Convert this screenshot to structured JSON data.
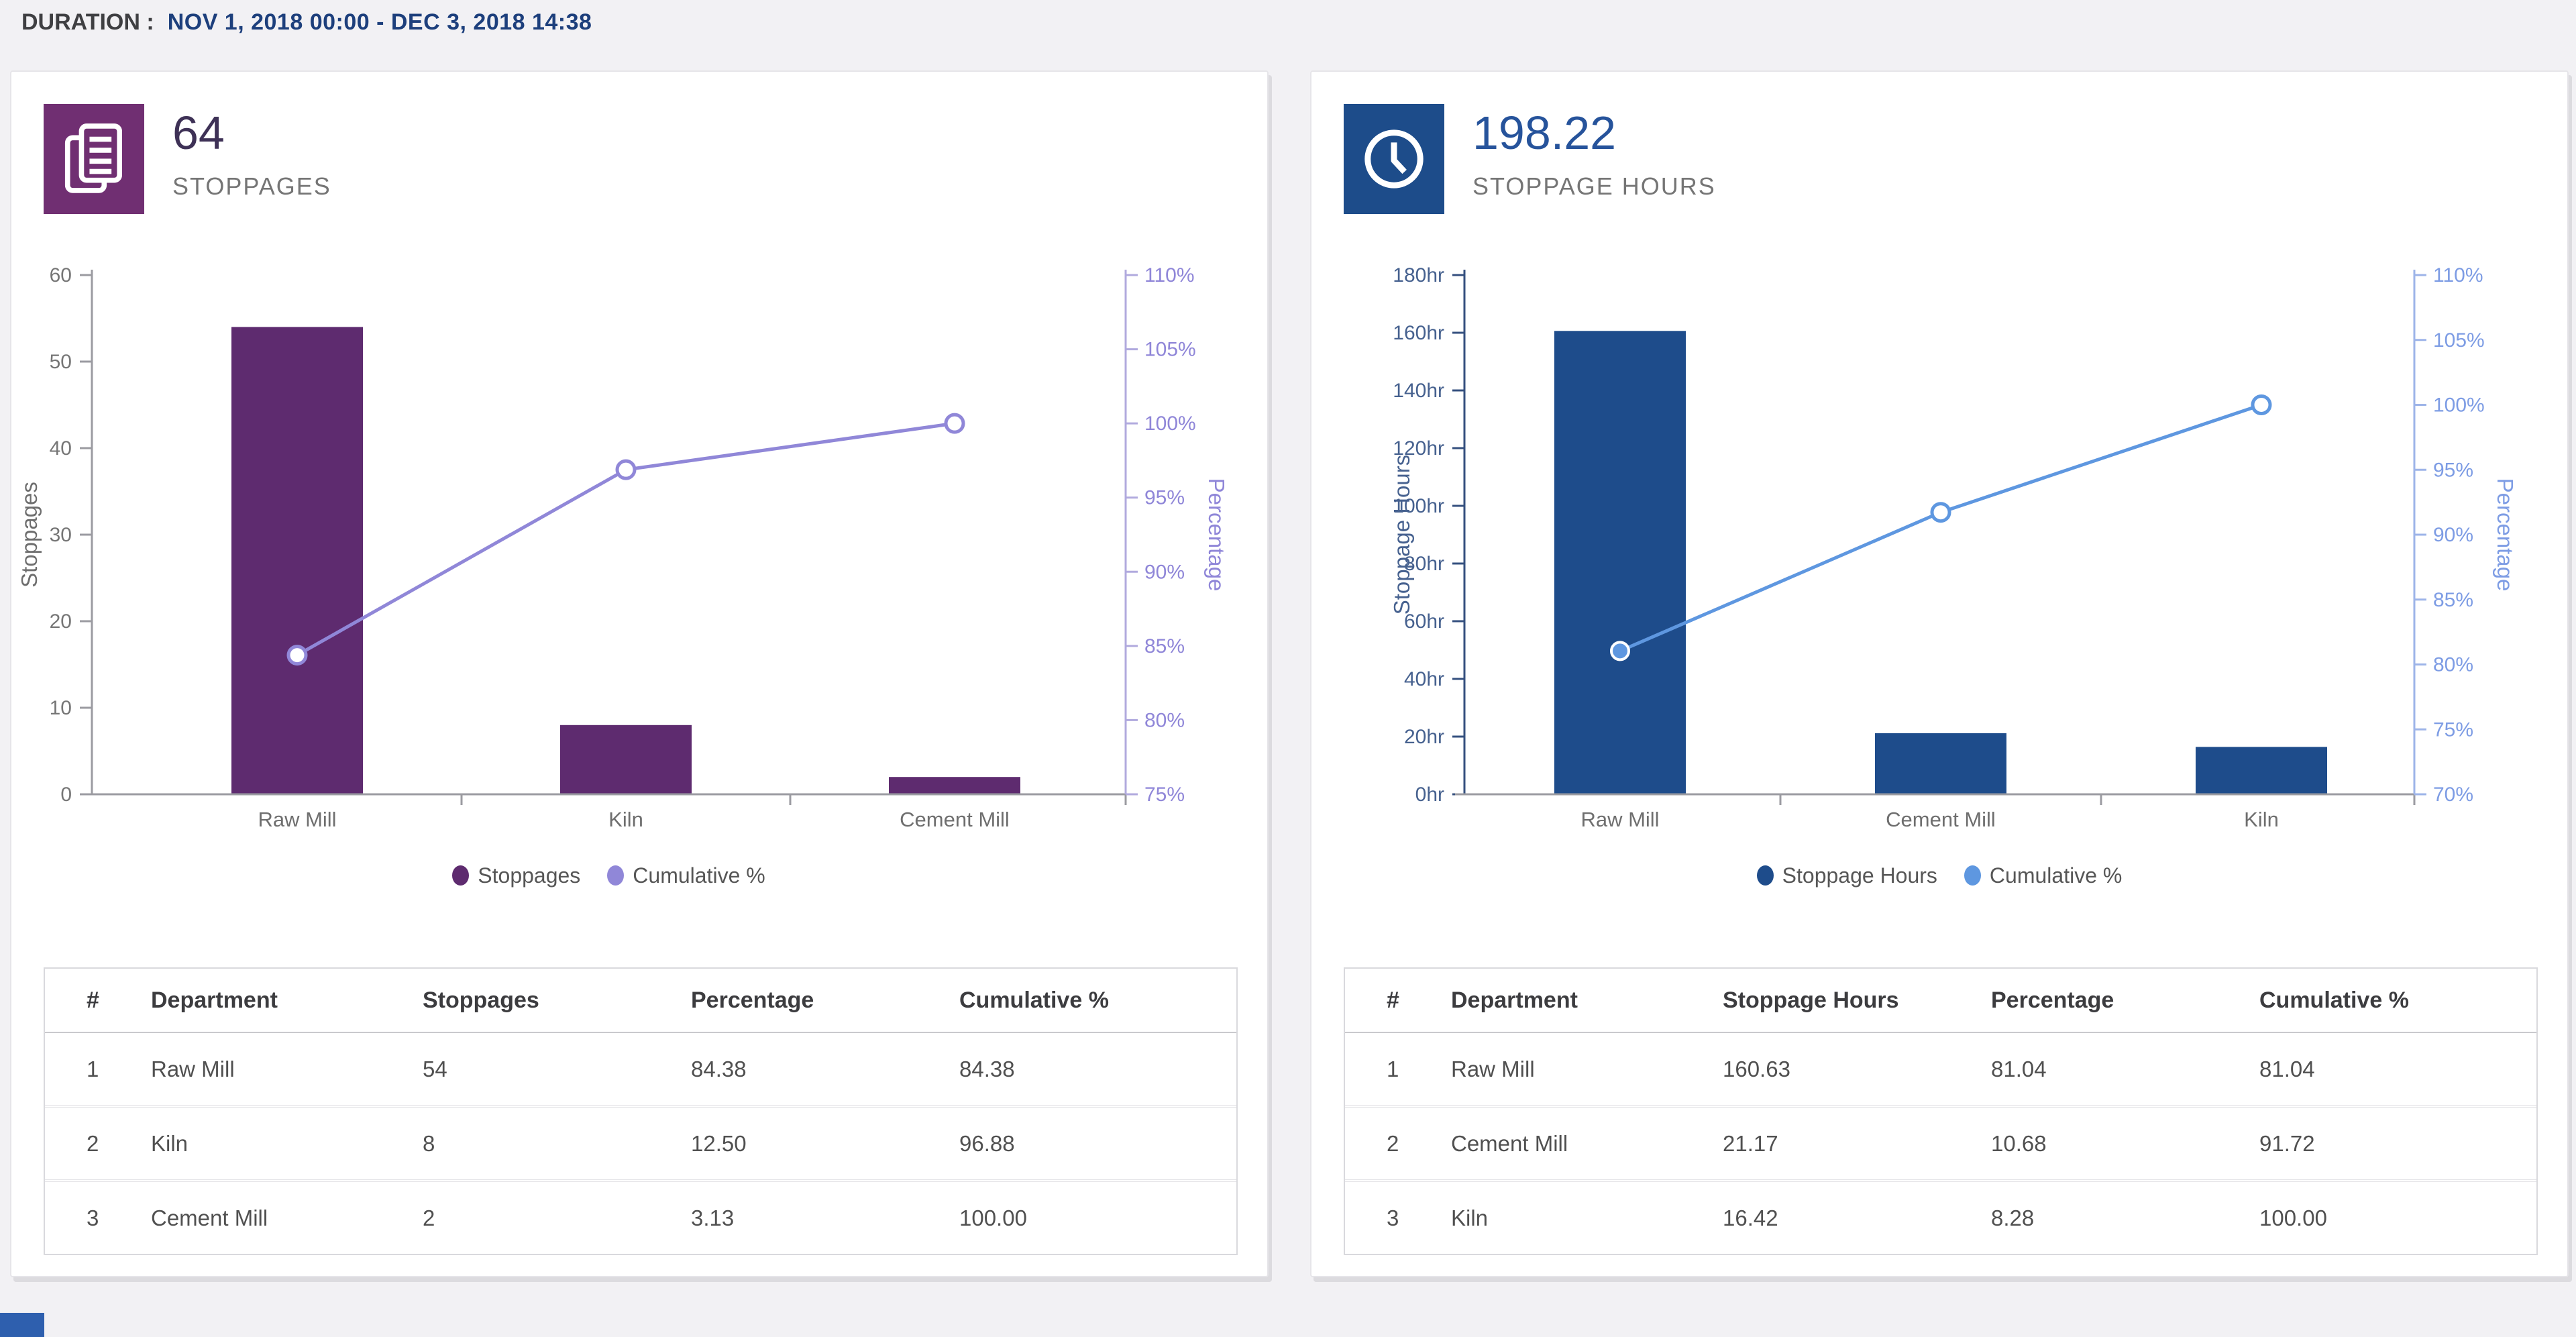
{
  "header": {
    "duration_label": "DURATION :",
    "duration_value": "NOV 1, 2018 00:00 - DEC 3, 2018 14:38"
  },
  "footer": {
    "accent_color": "#2e5fae"
  },
  "panels": [
    {
      "icon": "documents-icon",
      "icon_bg": "#702f72",
      "metric_value": "64",
      "metric_color": "#3e3156",
      "metric_label": "STOPPAGES",
      "chart_data": {
        "type": "pareto",
        "categories": [
          "Raw Mill",
          "Kiln",
          "Cement Mill"
        ],
        "series": [
          {
            "name": "Stoppages",
            "type": "bar",
            "values": [
              54,
              8,
              2
            ],
            "color": "#5e2b6f"
          },
          {
            "name": "Cumulative %",
            "type": "line",
            "values": [
              84.38,
              96.88,
              100.0
            ],
            "color": "#9087d8",
            "marker_filled": [
              false,
              false,
              false
            ]
          }
        ],
        "y": {
          "label": "Stoppages",
          "min": 0,
          "max": 60,
          "step": 10,
          "suffix": "",
          "tick_color": "#767676",
          "axis_color": "#9b9ba1",
          "title_color": "#6e6e6e"
        },
        "y2": {
          "label": "Percentage",
          "min": 75,
          "max": 110,
          "step": 5,
          "suffix": "%",
          "tick_color": "#8f86d8",
          "axis_color": "#b1aade",
          "title_color": "#8f86d8"
        },
        "x_tick_color": "#6e6e6e",
        "legend": [
          {
            "label": "Stoppages",
            "color": "#5e2b6f"
          },
          {
            "label": "Cumulative %",
            "color": "#9087d8"
          }
        ]
      },
      "table": {
        "headers": [
          "#",
          "Department",
          "Stoppages",
          "Percentage",
          "Cumulative %"
        ],
        "rows": [
          [
            "1",
            "Raw Mill",
            "54",
            "84.38",
            "84.38"
          ],
          [
            "2",
            "Kiln",
            "8",
            "12.50",
            "96.88"
          ],
          [
            "3",
            "Cement Mill",
            "2",
            "3.13",
            "100.00"
          ]
        ]
      }
    },
    {
      "icon": "clock-icon",
      "icon_bg": "#1d4c8a",
      "metric_value": "198.22",
      "metric_color": "#26539b",
      "metric_label": "STOPPAGE HOURS",
      "chart_data": {
        "type": "pareto",
        "categories": [
          "Raw Mill",
          "Cement Mill",
          "Kiln"
        ],
        "series": [
          {
            "name": "Stoppage Hours",
            "type": "bar",
            "values": [
              160.63,
              21.17,
              16.42
            ],
            "color": "#1e4c8b"
          },
          {
            "name": "Cumulative %",
            "type": "line",
            "values": [
              81.04,
              91.72,
              100.0
            ],
            "color": "#5e97e0",
            "marker_filled": [
              true,
              false,
              false
            ]
          }
        ],
        "y": {
          "label": "Stoppage Hours",
          "min": 0,
          "max": 180,
          "step": 20,
          "suffix": "hr",
          "tick_color": "#46618f",
          "axis_color": "#35507f",
          "title_color": "#46618f"
        },
        "y2": {
          "label": "Percentage",
          "min": 70,
          "max": 110,
          "step": 5,
          "suffix": "%",
          "tick_color": "#7d9ce4",
          "axis_color": "#9db4e8",
          "title_color": "#7d9ce4"
        },
        "x_tick_color": "#6e6e6e",
        "legend": [
          {
            "label": "Stoppage Hours",
            "color": "#1e4c8b"
          },
          {
            "label": "Cumulative %",
            "color": "#5e97e0"
          }
        ]
      },
      "table": {
        "headers": [
          "#",
          "Department",
          "Stoppage Hours",
          "Percentage",
          "Cumulative %"
        ],
        "rows": [
          [
            "1",
            "Raw Mill",
            "160.63",
            "81.04",
            "81.04"
          ],
          [
            "2",
            "Cement Mill",
            "21.17",
            "10.68",
            "91.72"
          ],
          [
            "3",
            "Kiln",
            "16.42",
            "8.28",
            "100.00"
          ]
        ]
      }
    }
  ]
}
